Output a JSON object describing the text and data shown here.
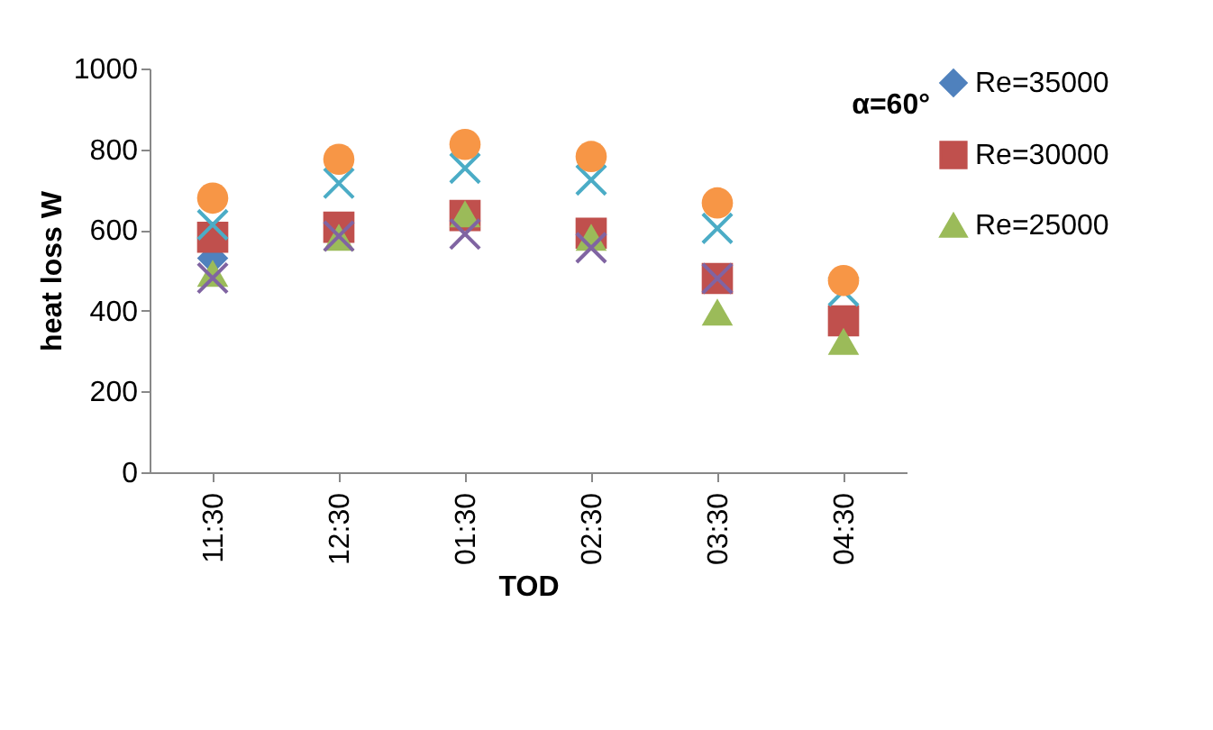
{
  "chart_data": {
    "type": "scatter",
    "title": "α=60°",
    "xlabel": "TOD",
    "ylabel": "heat loss W",
    "categories": [
      "11:30",
      "12:30",
      "01:30",
      "02:30",
      "03:30",
      "04:30"
    ],
    "ylim": [
      0,
      1000
    ],
    "yticks": [
      0,
      200,
      400,
      600,
      800,
      1000
    ],
    "grid": false,
    "legend": "right",
    "series": [
      {
        "name": "Re=35000",
        "color": "#4f81bd",
        "marker": "diamond",
        "values": [
          530,
          null,
          null,
          null,
          null,
          null
        ]
      },
      {
        "name": "Re=30000",
        "color": "#c0504d",
        "marker": "square",
        "values": [
          582,
          607,
          636,
          592,
          480,
          375
        ]
      },
      {
        "name": "Re=25000",
        "color": "#9bbb59",
        "marker": "triangle",
        "values": [
          493,
          582,
          640,
          582,
          397,
          324
        ]
      },
      {
        "color": "#8064a2",
        "marker": "cross",
        "values": [
          481,
          585,
          590,
          556,
          480,
          null
        ]
      },
      {
        "color": "#4bacc6",
        "marker": "cross",
        "values": [
          613,
          716,
          753,
          724,
          604,
          449
        ]
      },
      {
        "color": "#f79646",
        "marker": "circle",
        "values": [
          679,
          775,
          812,
          782,
          667,
          475
        ]
      }
    ]
  }
}
